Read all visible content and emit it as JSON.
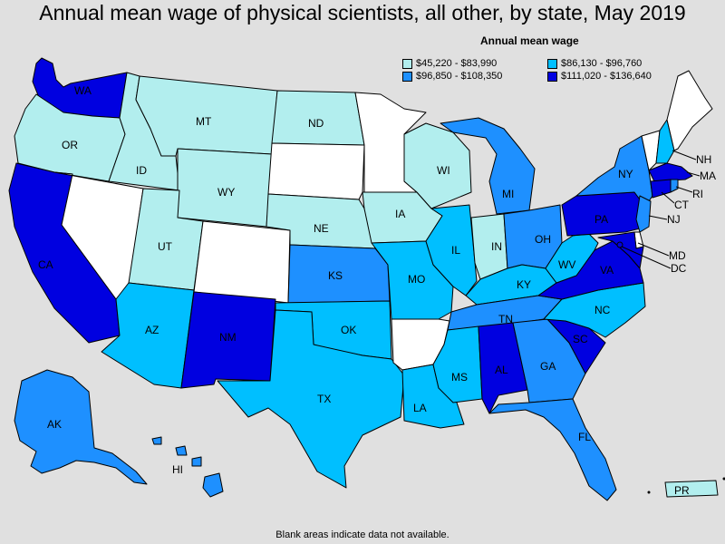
{
  "title": "Annual mean wage of physical scientists, all other, by state, May 2019",
  "legend": {
    "title": "Annual mean wage",
    "items": [
      {
        "label": "$45,220 - $83,990",
        "color": "#b2eeee"
      },
      {
        "label": "$86,130 - $96,760",
        "color": "#00bfff"
      },
      {
        "label": "$96,850 - $108,350",
        "color": "#1e90ff"
      },
      {
        "label": "$111,020 - $136,640",
        "color": "#0000e0"
      }
    ]
  },
  "footnote": "Blank areas indicate data not available.",
  "colors": {
    "t1": "#b2eeee",
    "t2": "#00bfff",
    "t3": "#1e90ff",
    "t4": "#0000e0",
    "na": "#ffffff"
  },
  "states": {
    "WA": {
      "label": "WA",
      "tier": "t4"
    },
    "OR": {
      "label": "OR",
      "tier": "t1"
    },
    "CA": {
      "label": "CA",
      "tier": "t4"
    },
    "NV": {
      "label": "",
      "tier": "na"
    },
    "ID": {
      "label": "ID",
      "tier": "t1"
    },
    "MT": {
      "label": "MT",
      "tier": "t1"
    },
    "WY": {
      "label": "WY",
      "tier": "t1"
    },
    "UT": {
      "label": "UT",
      "tier": "t1"
    },
    "AZ": {
      "label": "AZ",
      "tier": "t2"
    },
    "CO": {
      "label": "",
      "tier": "na"
    },
    "NM": {
      "label": "NM",
      "tier": "t4"
    },
    "ND": {
      "label": "ND",
      "tier": "t1"
    },
    "SD": {
      "label": "",
      "tier": "na"
    },
    "NE": {
      "label": "NE",
      "tier": "t1"
    },
    "KS": {
      "label": "KS",
      "tier": "t3"
    },
    "OK": {
      "label": "OK",
      "tier": "t2"
    },
    "TX": {
      "label": "TX",
      "tier": "t2"
    },
    "MN": {
      "label": "",
      "tier": "na"
    },
    "IA": {
      "label": "IA",
      "tier": "t1"
    },
    "MO": {
      "label": "MO",
      "tier": "t2"
    },
    "AR": {
      "label": "",
      "tier": "na"
    },
    "LA": {
      "label": "LA",
      "tier": "t2"
    },
    "WI": {
      "label": "WI",
      "tier": "t1"
    },
    "IL": {
      "label": "IL",
      "tier": "t2"
    },
    "MI": {
      "label": "MI",
      "tier": "t3"
    },
    "IN": {
      "label": "IN",
      "tier": "t1"
    },
    "OH": {
      "label": "OH",
      "tier": "t3"
    },
    "KY": {
      "label": "KY",
      "tier": "t2"
    },
    "TN": {
      "label": "TN",
      "tier": "t3"
    },
    "MS": {
      "label": "MS",
      "tier": "t2"
    },
    "AL": {
      "label": "AL",
      "tier": "t4"
    },
    "GA": {
      "label": "GA",
      "tier": "t3"
    },
    "FL": {
      "label": "FL",
      "tier": "t3"
    },
    "SC": {
      "label": "SC",
      "tier": "t4"
    },
    "NC": {
      "label": "NC",
      "tier": "t2"
    },
    "VA": {
      "label": "VA",
      "tier": "t4"
    },
    "WV": {
      "label": "WV",
      "tier": "t2"
    },
    "PA": {
      "label": "PA",
      "tier": "t4"
    },
    "NY": {
      "label": "NY",
      "tier": "t3"
    },
    "VT": {
      "label": "",
      "tier": "na"
    },
    "NH": {
      "label": "NH",
      "tier": "t2"
    },
    "ME": {
      "label": "",
      "tier": "na"
    },
    "MA": {
      "label": "MA",
      "tier": "t4"
    },
    "RI": {
      "label": "RI",
      "tier": "t3"
    },
    "CT": {
      "label": "CT",
      "tier": "t4"
    },
    "NJ": {
      "label": "NJ",
      "tier": "t3"
    },
    "DE": {
      "label": "",
      "tier": "na"
    },
    "MD": {
      "label": "MD",
      "tier": "t4"
    },
    "DC": {
      "label": "DC",
      "tier": "t4"
    },
    "AK": {
      "label": "AK",
      "tier": "t3"
    },
    "HI": {
      "label": "HI",
      "tier": "t3"
    },
    "PR": {
      "label": "PR",
      "tier": "t1"
    }
  }
}
